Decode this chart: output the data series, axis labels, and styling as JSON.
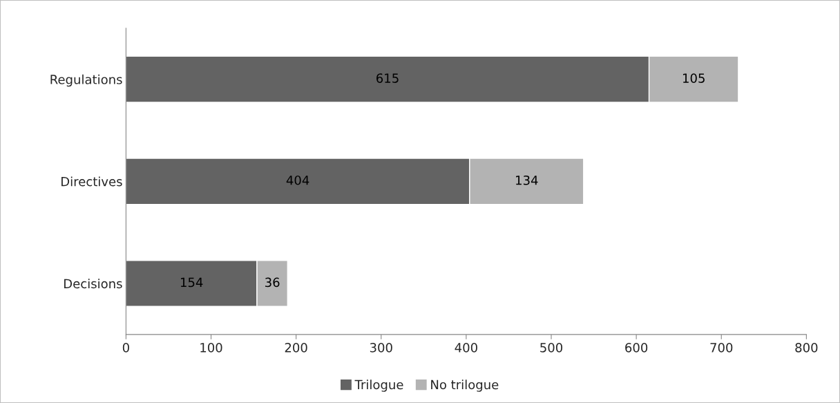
{
  "chart_data": {
    "type": "bar",
    "orientation": "horizontal",
    "stacked": true,
    "categories": [
      "Regulations",
      "Directives",
      "Decisions"
    ],
    "series": [
      {
        "name": "Trilogue",
        "color": "#636363",
        "values": [
          615,
          404,
          154
        ]
      },
      {
        "name": "No trilogue",
        "color": "#b3b3b3",
        "values": [
          105,
          134,
          36
        ]
      }
    ],
    "xlim": [
      0,
      800
    ],
    "xticks": [
      0,
      100,
      200,
      300,
      400,
      500,
      600,
      700,
      800
    ],
    "data_labels": true,
    "legend": "bottom",
    "grid": false
  }
}
